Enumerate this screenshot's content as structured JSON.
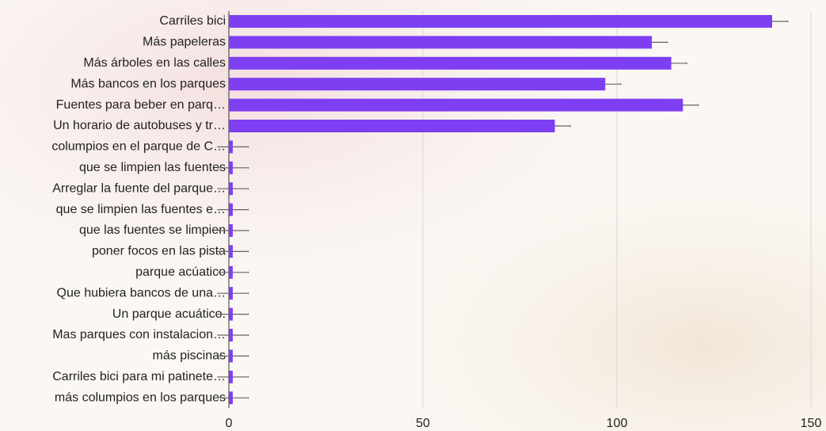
{
  "chart_data": {
    "type": "bar",
    "orientation": "horizontal",
    "categories": [
      "Carriles bici",
      "Más papeleras",
      "Más árboles en las calles",
      "Más bancos en los parques",
      "Fuentes para beber en parq…",
      "Un horario de autobuses y tr…",
      "columpios en el parque de C…",
      "que se limpien las fuentes",
      "Arreglar la fuente del parque…",
      "que se limpien las fuentes e…",
      "que las fuentes se limpien",
      "poner focos en las pista",
      "parque acúatico",
      "Que hubiera bancos de una…",
      "Un parque acuático.",
      "Mas parques con instalacion…",
      "más piscinas",
      "Carriles bici para mi patinete…",
      "más columpios en los parques"
    ],
    "values": [
      140,
      109,
      114,
      97,
      117,
      84,
      1,
      1,
      1,
      1,
      1,
      1,
      1,
      1,
      1,
      1,
      1,
      1,
      1
    ],
    "errors": [
      4,
      4,
      4,
      4,
      4,
      4,
      4,
      4,
      4,
      4,
      4,
      4,
      4,
      4,
      4,
      4,
      4,
      4,
      4
    ],
    "color": "#7e3ff2",
    "error_color": "#666666",
    "xlim": [
      0,
      150
    ],
    "xticks": [
      0,
      50,
      100,
      150
    ],
    "grid": true
  }
}
